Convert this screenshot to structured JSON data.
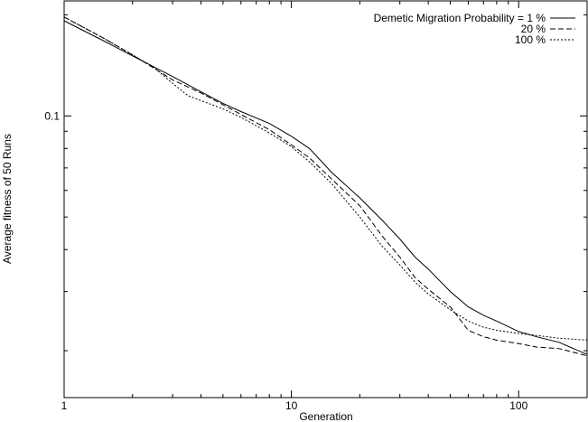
{
  "chart_data": {
    "type": "line",
    "xlabel": "Generation",
    "ylabel": "Average fitness of 50 Runs",
    "xscale": "log",
    "yscale": "log",
    "xlim": [
      1,
      200
    ],
    "ylim": [
      0.0145,
      0.22
    ],
    "grid": false,
    "legend_position": "top-right",
    "x_ticks": [
      {
        "value": 1,
        "label": "1"
      },
      {
        "value": 10,
        "label": "10"
      },
      {
        "value": 100,
        "label": "100"
      }
    ],
    "y_ticks": [
      {
        "value": 0.1,
        "label": "0.1"
      }
    ],
    "series": [
      {
        "name": "Demetic Migration Probability = 1 %",
        "dash": "solid",
        "points": [
          [
            1,
            0.192
          ],
          [
            1.5,
            0.167
          ],
          [
            2,
            0.151
          ],
          [
            3,
            0.131
          ],
          [
            4,
            0.118
          ],
          [
            5,
            0.109
          ],
          [
            6,
            0.103
          ],
          [
            8,
            0.095
          ],
          [
            10,
            0.087
          ],
          [
            12,
            0.08
          ],
          [
            15,
            0.068
          ],
          [
            20,
            0.057
          ],
          [
            25,
            0.049
          ],
          [
            30,
            0.043
          ],
          [
            35,
            0.038
          ],
          [
            40,
            0.035
          ],
          [
            50,
            0.03
          ],
          [
            60,
            0.027
          ],
          [
            70,
            0.0255
          ],
          [
            80,
            0.0245
          ],
          [
            100,
            0.0228
          ],
          [
            120,
            0.022
          ],
          [
            150,
            0.0212
          ],
          [
            200,
            0.0195
          ]
        ]
      },
      {
        "name": "20 %",
        "dash": "dash",
        "points": [
          [
            1,
            0.197
          ],
          [
            1.5,
            0.17
          ],
          [
            2,
            0.152
          ],
          [
            3,
            0.128
          ],
          [
            4,
            0.117
          ],
          [
            5,
            0.108
          ],
          [
            6,
            0.101
          ],
          [
            8,
            0.091
          ],
          [
            10,
            0.082
          ],
          [
            12,
            0.075
          ],
          [
            15,
            0.065
          ],
          [
            20,
            0.054
          ],
          [
            25,
            0.044
          ],
          [
            30,
            0.038
          ],
          [
            35,
            0.033
          ],
          [
            40,
            0.0305
          ],
          [
            50,
            0.027
          ],
          [
            60,
            0.023
          ],
          [
            70,
            0.022
          ],
          [
            80,
            0.0215
          ],
          [
            100,
            0.021
          ],
          [
            120,
            0.0205
          ],
          [
            150,
            0.0203
          ],
          [
            200,
            0.0193
          ]
        ]
      },
      {
        "name": "100 %",
        "dash": "dot",
        "points": [
          [
            1,
            0.197
          ],
          [
            1.5,
            0.17
          ],
          [
            2,
            0.152
          ],
          [
            2.5,
            0.139
          ],
          [
            3,
            0.125
          ],
          [
            3.5,
            0.115
          ],
          [
            4,
            0.111
          ],
          [
            5,
            0.105
          ],
          [
            6,
            0.099
          ],
          [
            8,
            0.089
          ],
          [
            10,
            0.081
          ],
          [
            12,
            0.073
          ],
          [
            15,
            0.063
          ],
          [
            20,
            0.05
          ],
          [
            25,
            0.041
          ],
          [
            30,
            0.036
          ],
          [
            35,
            0.032
          ],
          [
            40,
            0.0295
          ],
          [
            50,
            0.0265
          ],
          [
            60,
            0.0245
          ],
          [
            70,
            0.0235
          ],
          [
            80,
            0.023
          ],
          [
            100,
            0.0225
          ],
          [
            120,
            0.0222
          ],
          [
            150,
            0.0218
          ],
          [
            200,
            0.0215
          ]
        ]
      }
    ]
  }
}
